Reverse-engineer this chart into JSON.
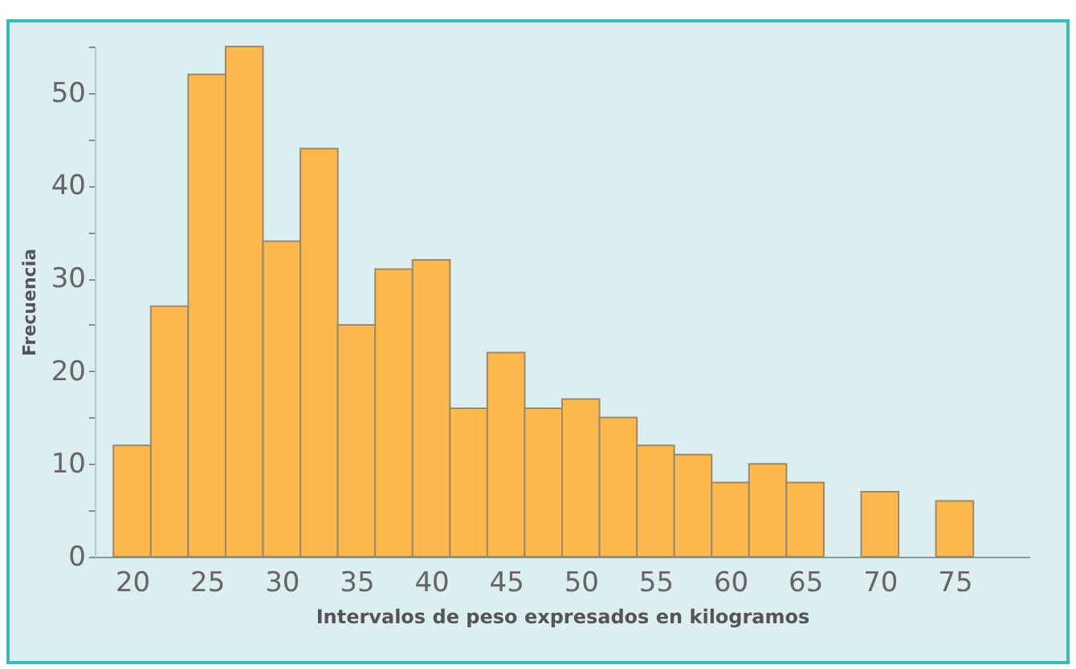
{
  "chart_data": {
    "type": "histogram",
    "xlabel": "Intervalos de peso expresados en kilogramos",
    "ylabel": "Frecuencia",
    "bins": [
      18.75,
      21.25,
      23.75,
      26.25,
      28.75,
      31.25,
      33.75,
      36.25,
      38.75,
      41.25,
      43.75,
      46.25,
      48.75,
      51.25,
      53.75,
      56.25,
      58.75,
      61.25,
      63.75,
      66.25,
      68.75,
      71.25,
      73.75,
      76.25
    ],
    "values": [
      12,
      27,
      52,
      55,
      34,
      44,
      25,
      31,
      32,
      16,
      22,
      16,
      17,
      15,
      12,
      11,
      8,
      10,
      8,
      0,
      7,
      0,
      6
    ],
    "color": "#fdb84e",
    "xlim": [
      17.5,
      80
    ],
    "xticks": [
      20,
      25,
      30,
      35,
      40,
      45,
      50,
      55,
      60,
      65,
      70,
      75
    ],
    "ylim": [
      0,
      55
    ],
    "yticks": [
      0,
      {
        "value": 5,
        "label": null
      },
      10,
      {
        "value": 15,
        "label": null
      },
      20,
      {
        "value": 25,
        "label": null
      },
      30,
      {
        "value": 35,
        "label": null
      },
      40,
      {
        "value": 45,
        "label": null
      },
      50,
      {
        "value": 55,
        "label": null
      }
    ],
    "grid": false
  }
}
